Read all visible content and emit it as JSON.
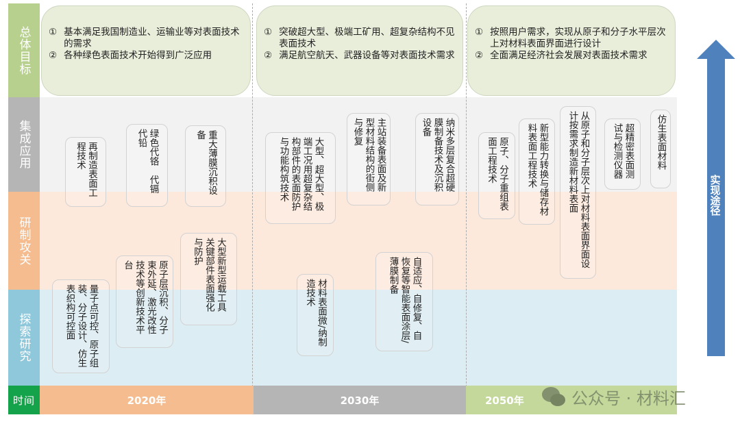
{
  "rows": {
    "goal": "总体目标",
    "integration": "集成应用",
    "research": "研制攻关",
    "explore": "探索研究",
    "time": "时间"
  },
  "colors": {
    "goal": "#b7d08e",
    "integration": "#b5b5b5",
    "research": "#f5bc8f",
    "explore": "#8fc7db",
    "time": "#14a24a",
    "arrow": "#4f81bd"
  },
  "goals": [
    {
      "items": [
        {
          "n": "①",
          "t": "基本满足我国制造业、运输业等对表面技术的需求"
        },
        {
          "n": "②",
          "t": "各种绿色表面技术开始得到广泛应用"
        }
      ]
    },
    {
      "items": [
        {
          "n": "①",
          "t": "突破超大型、极端工矿用、超复杂结构不见表面技术"
        },
        {
          "n": "②",
          "t": "满足航空航天、武器设备等对表面技术需求"
        }
      ]
    },
    {
      "items": [
        {
          "n": "①",
          "t": "按照用户需求，实现从原子和分子水平层次上对材料表面界面进行设计"
        },
        {
          "n": "②",
          "t": "全面满足经济社会发展对表面技术需求"
        }
      ]
    }
  ],
  "boxes": {
    "b1": "再制造表面工程技术",
    "b2": "绿色代铬　代镉　代铅",
    "b3": "重大薄膜沉积设备",
    "b4": "大型新型运载工具关键部件表面强化与防护",
    "b5": "原子层沉积、分子束外延、激光改性技术等创新技术平台",
    "b6": "量子点可控、原子组装、分子设计、仿生表织构可控面",
    "b7": "大型、超大型、极端工况用超复杂结构部件的表面防护与功能构筑技术",
    "b8": "主站装备表面及新型材料结构的街侧与修复",
    "b9": "纳米多层复合超硬膜制备技术及沉积设备",
    "b10": "材料表面微/纳制造技术",
    "b11": "自适应、自修复、自恢复等智能表面涂层/薄膜制备",
    "b12": "原子、分子重组表面工程技术",
    "b13": "新型能力转换与储存材料表面工程技术",
    "b14": "从原子和分子层次上对材料表面界面设计按需求制造新材料表面",
    "b15": "超精密表面测试与检测仪器",
    "b16": "仿生表面材料"
  },
  "timeline": [
    "2020年",
    "2030年",
    "2050年"
  ],
  "arrow_label": "实现途径",
  "watermark": "公众号 · 材料汇"
}
